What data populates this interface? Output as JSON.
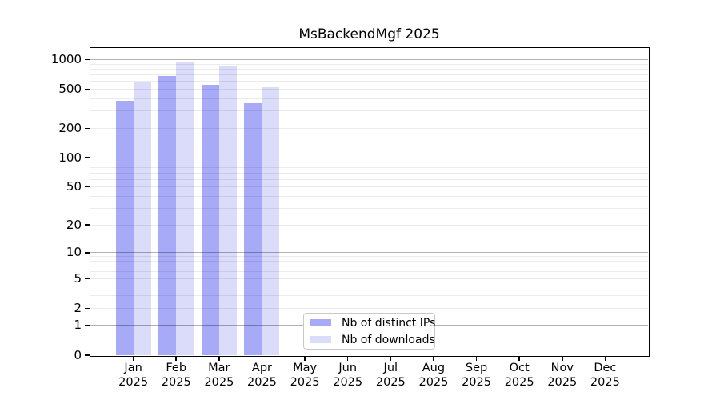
{
  "chart_data": {
    "type": "bar",
    "title": "MsBackendMgf 2025",
    "categories": [
      "Jan",
      "Feb",
      "Mar",
      "Apr",
      "May",
      "Jun",
      "Jul",
      "Aug",
      "Sep",
      "Oct",
      "Nov",
      "Dec"
    ],
    "category_year": "2025",
    "series": [
      {
        "name": "Nb of distinct IPs",
        "color": "#a7aaf6",
        "values": [
          380,
          680,
          560,
          360,
          0,
          0,
          0,
          0,
          0,
          0,
          0,
          0
        ]
      },
      {
        "name": "Nb of downloads",
        "color": "#dadcfa",
        "values": [
          600,
          940,
          850,
          520,
          0,
          0,
          0,
          0,
          0,
          0,
          0,
          0
        ]
      }
    ],
    "y_axis": {
      "scale": "log1p",
      "ylim": [
        0,
        1313
      ],
      "tick_labels": [
        "1000",
        "500",
        "200",
        "100",
        "50",
        "20",
        "10",
        "5",
        "2",
        "1",
        "0"
      ],
      "tick_values": [
        1000,
        500,
        200,
        100,
        50,
        20,
        10,
        5,
        2,
        1,
        0
      ],
      "major_gridlines": [
        1,
        10,
        100,
        1000
      ],
      "minor_gridlines": [
        2,
        3,
        4,
        5,
        6,
        7,
        8,
        9,
        20,
        30,
        40,
        50,
        60,
        70,
        80,
        90,
        200,
        300,
        400,
        500,
        600,
        700,
        800,
        900
      ]
    },
    "legend": {
      "position": "bottom-center"
    },
    "colors": {
      "background": "#ffffff",
      "spine": "#000000",
      "major_grid": "#b3b3b3",
      "minor_grid": "#ebebeb"
    }
  }
}
